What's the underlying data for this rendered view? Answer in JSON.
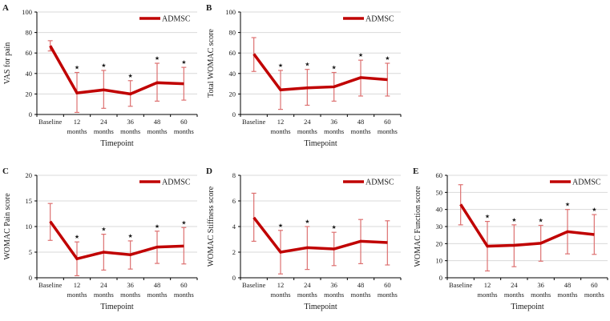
{
  "figure": {
    "legend_label": "ADMSC",
    "x_axis_title": "Timepoint",
    "sig_marker": "★",
    "grid": true,
    "legend_position": "top-right",
    "colors": {
      "line": "#c00000",
      "error_bar": "#dd7070",
      "gridline": "#d9d9d9",
      "axis": "#000000",
      "text": "#1a1a1a",
      "marker": "#111111"
    }
  },
  "chart_data": [
    {
      "panel": "A",
      "type": "line",
      "title": "",
      "ylabel": "VAS for pain",
      "xlabel": "Timepoint",
      "ylim": [
        0,
        100
      ],
      "yticks": [
        0,
        20,
        40,
        60,
        80,
        100
      ],
      "categories": [
        "Baseline",
        "12 months",
        "24 months",
        "36 months",
        "48 months",
        "60 months"
      ],
      "series": [
        {
          "name": "ADMSC",
          "values": [
            67,
            21,
            24,
            20,
            31,
            30
          ],
          "err_low": [
            62,
            2,
            6,
            8,
            13,
            14
          ],
          "err_high": [
            72,
            41,
            43,
            33,
            50,
            46
          ]
        }
      ],
      "significant": [
        false,
        true,
        true,
        true,
        true,
        true
      ]
    },
    {
      "panel": "B",
      "type": "line",
      "title": "",
      "ylabel": "Total WOMAC score",
      "xlabel": "Timepoint",
      "ylim": [
        0,
        100
      ],
      "yticks": [
        0,
        20,
        40,
        60,
        80,
        100
      ],
      "categories": [
        "Baseline",
        "12 months",
        "24 months",
        "36 months",
        "48 months",
        "60 months"
      ],
      "series": [
        {
          "name": "ADMSC",
          "values": [
            59,
            24,
            26,
            27,
            36,
            34
          ],
          "err_low": [
            42,
            5,
            9,
            13,
            18,
            18
          ],
          "err_high": [
            75,
            43,
            44,
            41,
            53,
            50
          ]
        }
      ],
      "significant": [
        false,
        true,
        true,
        true,
        true,
        true
      ]
    },
    {
      "panel": "C",
      "type": "line",
      "title": "",
      "ylabel": "WOMAC Pain score",
      "xlabel": "Timepoint",
      "ylim": [
        0,
        20
      ],
      "yticks": [
        0,
        5,
        10,
        15,
        20
      ],
      "categories": [
        "Baseline",
        "12 months",
        "24 months",
        "36 months",
        "48 months",
        "60 months"
      ],
      "series": [
        {
          "name": "ADMSC",
          "values": [
            11,
            3.7,
            5,
            4.5,
            6,
            6.2
          ],
          "err_low": [
            7.3,
            0.4,
            1.5,
            1.7,
            2.8,
            2.7
          ],
          "err_high": [
            14.5,
            7,
            8.5,
            7.2,
            9.1,
            9.8
          ]
        }
      ],
      "significant": [
        false,
        true,
        true,
        true,
        true,
        true
      ]
    },
    {
      "panel": "D",
      "type": "line",
      "title": "",
      "ylabel": "WOMAC Stiffness score",
      "xlabel": "Timepoint",
      "ylim": [
        0,
        8
      ],
      "yticks": [
        0,
        2,
        4,
        6,
        8
      ],
      "categories": [
        "Baseline",
        "12 months",
        "24 months",
        "36 months",
        "48 months",
        "60 months"
      ],
      "series": [
        {
          "name": "ADMSC",
          "values": [
            4.7,
            2,
            2.35,
            2.25,
            2.85,
            2.75
          ],
          "err_low": [
            2.85,
            0.3,
            0.65,
            0.95,
            1.1,
            1
          ],
          "err_high": [
            6.6,
            3.7,
            4,
            3.55,
            4.55,
            4.45
          ]
        }
      ],
      "significant": [
        false,
        true,
        true,
        true,
        false,
        false
      ]
    },
    {
      "panel": "E",
      "type": "line",
      "title": "",
      "ylabel": "WOMAC Function score",
      "xlabel": "Timepoint",
      "ylim": [
        0,
        60
      ],
      "yticks": [
        0,
        10,
        20,
        30,
        40,
        50,
        60
      ],
      "categories": [
        "Baseline",
        "12 months",
        "24 months",
        "36 months",
        "48 months",
        "60 months"
      ],
      "series": [
        {
          "name": "ADMSC",
          "values": [
            43,
            18.5,
            19,
            20.2,
            27,
            25.3
          ],
          "err_low": [
            31,
            4,
            6.5,
            9.7,
            14,
            13.7
          ],
          "err_high": [
            54.5,
            33,
            31,
            30.7,
            40,
            37
          ]
        }
      ],
      "significant": [
        false,
        true,
        true,
        true,
        true,
        true
      ]
    }
  ]
}
